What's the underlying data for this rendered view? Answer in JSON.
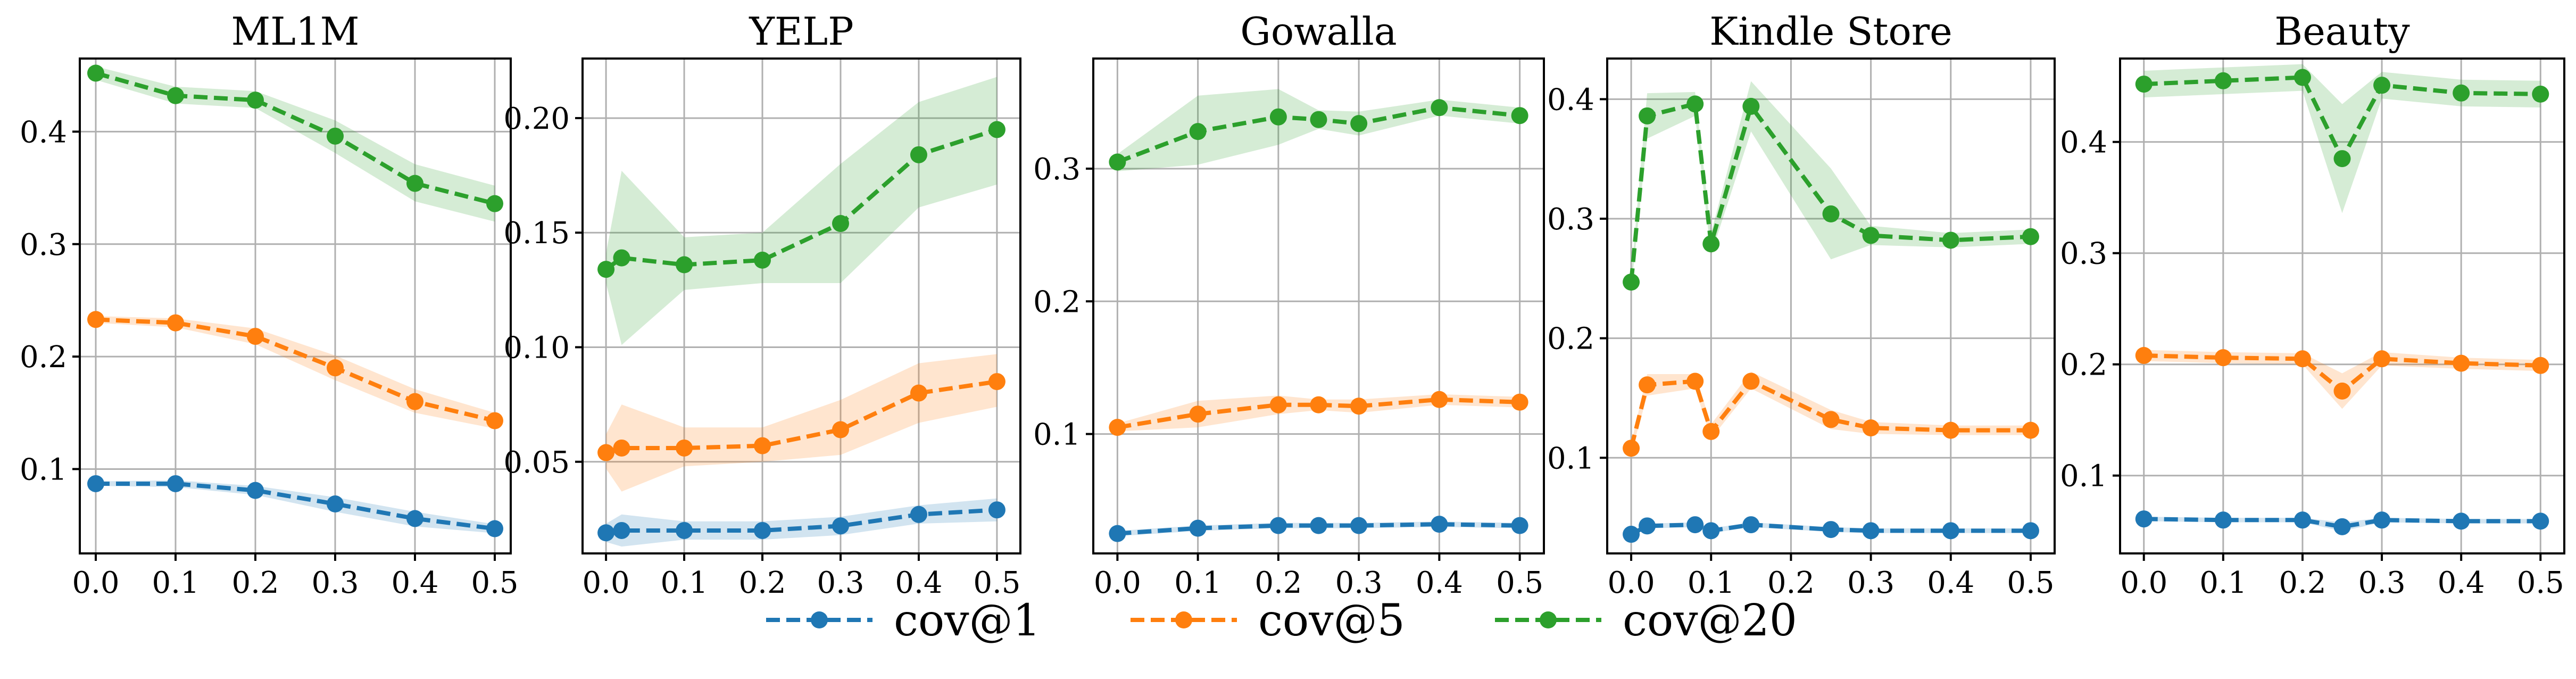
{
  "colors": {
    "cov@1": "#1f77b4",
    "cov@5": "#ff7f0e",
    "cov@20": "#2ca02c"
  },
  "legend": [
    "cov@1",
    "cov@5",
    "cov@20"
  ],
  "chart_data": [
    {
      "type": "line",
      "title": "ML1M",
      "ylim": [
        0.025,
        0.465
      ],
      "yticks": [
        0.1,
        0.2,
        0.3,
        0.4
      ],
      "ytick_labels": [
        "0.1",
        "0.2",
        "0.3",
        "0.4"
      ],
      "xlim": [
        -0.02,
        0.52
      ],
      "xticks": [
        0.0,
        0.1,
        0.2,
        0.3,
        0.4,
        0.5
      ],
      "xtick_labels": [
        "0.0",
        "0.1",
        "0.2",
        "0.3",
        "0.4",
        "0.5"
      ],
      "x": [
        0.0,
        0.1,
        0.2,
        0.3,
        0.4,
        0.5
      ],
      "series": [
        {
          "name": "cov@1",
          "values": [
            0.087,
            0.087,
            0.081,
            0.069,
            0.056,
            0.047
          ],
          "band": [
            [
              0.085,
              0.089
            ],
            [
              0.084,
              0.09
            ],
            [
              0.077,
              0.085
            ],
            [
              0.062,
              0.075
            ],
            [
              0.049,
              0.062
            ],
            [
              0.043,
              0.051
            ]
          ]
        },
        {
          "name": "cov@5",
          "values": [
            0.233,
            0.23,
            0.218,
            0.19,
            0.16,
            0.143
          ],
          "band": [
            [
              0.23,
              0.236
            ],
            [
              0.226,
              0.234
            ],
            [
              0.211,
              0.225
            ],
            [
              0.179,
              0.201
            ],
            [
              0.15,
              0.171
            ],
            [
              0.136,
              0.15
            ]
          ]
        },
        {
          "name": "cov@20",
          "values": [
            0.452,
            0.432,
            0.428,
            0.396,
            0.354,
            0.336
          ],
          "band": [
            [
              0.446,
              0.458
            ],
            [
              0.425,
              0.44
            ],
            [
              0.421,
              0.436
            ],
            [
              0.381,
              0.41
            ],
            [
              0.338,
              0.371
            ],
            [
              0.32,
              0.352
            ]
          ]
        }
      ]
    },
    {
      "type": "line",
      "title": "YELP",
      "ylim": [
        0.01,
        0.226
      ],
      "yticks": [
        0.05,
        0.1,
        0.15,
        0.2
      ],
      "ytick_labels": [
        "0.05",
        "0.10",
        "0.15",
        "0.20"
      ],
      "xlim": [
        -0.03,
        0.53
      ],
      "xticks": [
        0.0,
        0.1,
        0.2,
        0.3,
        0.4,
        0.5
      ],
      "xtick_labels": [
        "0.0",
        "0.1",
        "0.2",
        "0.3",
        "0.4",
        "0.5"
      ],
      "x": [
        0.0,
        0.02,
        0.1,
        0.2,
        0.3,
        0.4,
        0.5
      ],
      "series": [
        {
          "name": "cov@1",
          "values": [
            0.019,
            0.02,
            0.02,
            0.02,
            0.022,
            0.027,
            0.029
          ],
          "band": [
            [
              0.015,
              0.023
            ],
            [
              0.013,
              0.027
            ],
            [
              0.016,
              0.024
            ],
            [
              0.016,
              0.024
            ],
            [
              0.018,
              0.026
            ],
            [
              0.023,
              0.031
            ],
            [
              0.024,
              0.034
            ]
          ]
        },
        {
          "name": "cov@5",
          "values": [
            0.054,
            0.056,
            0.056,
            0.057,
            0.064,
            0.08,
            0.085
          ],
          "band": [
            [
              0.047,
              0.062
            ],
            [
              0.037,
              0.075
            ],
            [
              0.048,
              0.065
            ],
            [
              0.05,
              0.065
            ],
            [
              0.053,
              0.077
            ],
            [
              0.067,
              0.093
            ],
            [
              0.074,
              0.097
            ]
          ]
        },
        {
          "name": "cov@20",
          "values": [
            0.134,
            0.139,
            0.136,
            0.138,
            0.154,
            0.184,
            0.195
          ],
          "band": [
            [
              0.128,
              0.141
            ],
            [
              0.101,
              0.177
            ],
            [
              0.125,
              0.148
            ],
            [
              0.128,
              0.15
            ],
            [
              0.128,
              0.18
            ],
            [
              0.161,
              0.207
            ],
            [
              0.171,
              0.218
            ]
          ]
        }
      ]
    },
    {
      "type": "line",
      "title": "Gowalla",
      "ylim": [
        0.01,
        0.383
      ],
      "yticks": [
        0.1,
        0.2,
        0.3
      ],
      "ytick_labels": [
        "0.1",
        "0.2",
        "0.3"
      ],
      "xlim": [
        -0.03,
        0.53
      ],
      "xticks": [
        0.0,
        0.1,
        0.2,
        0.3,
        0.4,
        0.5
      ],
      "xtick_labels": [
        "0.0",
        "0.1",
        "0.2",
        "0.3",
        "0.4",
        "0.5"
      ],
      "x": [
        0.0,
        0.1,
        0.2,
        0.25,
        0.3,
        0.4,
        0.5
      ],
      "series": [
        {
          "name": "cov@1",
          "values": [
            0.025,
            0.029,
            0.031,
            0.031,
            0.031,
            0.032,
            0.031
          ],
          "band": [
            [
              0.023,
              0.027
            ],
            [
              0.027,
              0.031
            ],
            [
              0.029,
              0.033
            ],
            [
              0.029,
              0.033
            ],
            [
              0.029,
              0.033
            ],
            [
              0.03,
              0.034
            ],
            [
              0.029,
              0.033
            ]
          ]
        },
        {
          "name": "cov@5",
          "values": [
            0.105,
            0.115,
            0.122,
            0.122,
            0.121,
            0.126,
            0.124
          ],
          "band": [
            [
              0.102,
              0.108
            ],
            [
              0.105,
              0.125
            ],
            [
              0.115,
              0.129
            ],
            [
              0.118,
              0.126
            ],
            [
              0.116,
              0.126
            ],
            [
              0.122,
              0.13
            ],
            [
              0.12,
              0.128
            ]
          ]
        },
        {
          "name": "cov@20",
          "values": [
            0.305,
            0.328,
            0.339,
            0.337,
            0.334,
            0.346,
            0.34
          ],
          "band": [
            [
              0.298,
              0.311
            ],
            [
              0.303,
              0.355
            ],
            [
              0.318,
              0.36
            ],
            [
              0.33,
              0.344
            ],
            [
              0.325,
              0.343
            ],
            [
              0.34,
              0.352
            ],
            [
              0.334,
              0.346
            ]
          ]
        }
      ]
    },
    {
      "type": "line",
      "title": "Kindle Store",
      "ylim": [
        0.02,
        0.434
      ],
      "yticks": [
        0.1,
        0.2,
        0.3,
        0.4
      ],
      "ytick_labels": [
        "0.1",
        "0.2",
        "0.3",
        "0.4"
      ],
      "xlim": [
        -0.03,
        0.53
      ],
      "xticks": [
        0.0,
        0.1,
        0.2,
        0.3,
        0.4,
        0.5
      ],
      "xtick_labels": [
        "0.0",
        "0.1",
        "0.2",
        "0.3",
        "0.4",
        "0.5"
      ],
      "x": [
        0.0,
        0.02,
        0.08,
        0.1,
        0.15,
        0.25,
        0.3,
        0.4,
        0.5
      ],
      "series": [
        {
          "name": "cov@1",
          "values": [
            0.036,
            0.043,
            0.044,
            0.039,
            0.044,
            0.04,
            0.039,
            0.039,
            0.039
          ],
          "band": [
            [
              0.034,
              0.038
            ],
            [
              0.041,
              0.045
            ],
            [
              0.042,
              0.046
            ],
            [
              0.037,
              0.041
            ],
            [
              0.042,
              0.046
            ],
            [
              0.038,
              0.042
            ],
            [
              0.037,
              0.041
            ],
            [
              0.037,
              0.041
            ],
            [
              0.037,
              0.041
            ]
          ]
        },
        {
          "name": "cov@5",
          "values": [
            0.108,
            0.161,
            0.164,
            0.122,
            0.164,
            0.132,
            0.125,
            0.123,
            0.123
          ],
          "band": [
            [
              0.104,
              0.112
            ],
            [
              0.152,
              0.17
            ],
            [
              0.158,
              0.17
            ],
            [
              0.116,
              0.128
            ],
            [
              0.158,
              0.172
            ],
            [
              0.124,
              0.14
            ],
            [
              0.12,
              0.13
            ],
            [
              0.119,
              0.127
            ],
            [
              0.119,
              0.127
            ]
          ]
        },
        {
          "name": "cov@20",
          "values": [
            0.247,
            0.386,
            0.396,
            0.279,
            0.394,
            0.304,
            0.286,
            0.282,
            0.285
          ],
          "band": [
            [
              0.242,
              0.252
            ],
            [
              0.367,
              0.405
            ],
            [
              0.386,
              0.406
            ],
            [
              0.27,
              0.288
            ],
            [
              0.373,
              0.415
            ],
            [
              0.266,
              0.342
            ],
            [
              0.278,
              0.294
            ],
            [
              0.276,
              0.288
            ],
            [
              0.279,
              0.291
            ]
          ]
        }
      ]
    },
    {
      "type": "line",
      "title": "Beauty",
      "ylim": [
        0.03,
        0.475
      ],
      "yticks": [
        0.1,
        0.2,
        0.3,
        0.4
      ],
      "ytick_labels": [
        "0.1",
        "0.2",
        "0.3",
        "0.4"
      ],
      "xlim": [
        -0.03,
        0.53
      ],
      "xticks": [
        0.0,
        0.1,
        0.2,
        0.3,
        0.4,
        0.5
      ],
      "xtick_labels": [
        "0.0",
        "0.1",
        "0.2",
        "0.3",
        "0.4",
        "0.5"
      ],
      "x": [
        0.0,
        0.1,
        0.2,
        0.25,
        0.3,
        0.4,
        0.5
      ],
      "series": [
        {
          "name": "cov@1",
          "values": [
            0.061,
            0.06,
            0.06,
            0.054,
            0.06,
            0.059,
            0.059
          ],
          "band": [
            [
              0.059,
              0.063
            ],
            [
              0.058,
              0.062
            ],
            [
              0.058,
              0.062
            ],
            [
              0.05,
              0.058
            ],
            [
              0.058,
              0.062
            ],
            [
              0.057,
              0.061
            ],
            [
              0.057,
              0.061
            ]
          ]
        },
        {
          "name": "cov@5",
          "values": [
            0.208,
            0.206,
            0.205,
            0.176,
            0.205,
            0.201,
            0.199
          ],
          "band": [
            [
              0.203,
              0.213
            ],
            [
              0.201,
              0.211
            ],
            [
              0.2,
              0.21
            ],
            [
              0.16,
              0.192
            ],
            [
              0.199,
              0.211
            ],
            [
              0.196,
              0.206
            ],
            [
              0.194,
              0.204
            ]
          ]
        },
        {
          "name": "cov@20",
          "values": [
            0.452,
            0.455,
            0.458,
            0.385,
            0.451,
            0.444,
            0.443
          ],
          "band": [
            [
              0.44,
              0.464
            ],
            [
              0.443,
              0.467
            ],
            [
              0.446,
              0.47
            ],
            [
              0.336,
              0.434
            ],
            [
              0.439,
              0.463
            ],
            [
              0.432,
              0.456
            ],
            [
              0.431,
              0.455
            ]
          ]
        }
      ]
    }
  ]
}
